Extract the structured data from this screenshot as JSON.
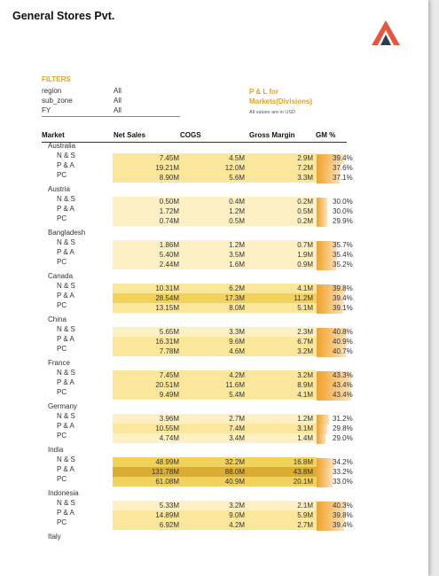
{
  "company": "General Stores Pvt.",
  "filters": {
    "title": "FILTERS",
    "rows": [
      {
        "label": "region",
        "value": "All"
      },
      {
        "label": "sub_zone",
        "value": "All"
      },
      {
        "label": "FY",
        "value": "All"
      }
    ]
  },
  "report": {
    "title_line1": "P & L for",
    "title_line2": "Markets(Divisions)",
    "note": "All values are in USD"
  },
  "headers": {
    "market": "Market",
    "net_sales": "Net Sales",
    "cogs": "COGS",
    "gross_margin": "Gross Margin",
    "gm_pct": "GM %"
  },
  "colors": {
    "accent": "#e8a21a",
    "band_light": "#fdf0c4",
    "band_mid": "#fae79c",
    "band_strong": "#f1d25c",
    "band_dark": "#d8ad32"
  },
  "markets": [
    {
      "name": "Australia",
      "rows": [
        {
          "division": "N & S",
          "net_sales": "7.45M",
          "cogs": "4.5M",
          "gross_margin": "2.9M",
          "gm_pct": "39.4%",
          "gm": 39.4
        },
        {
          "division": "P & A",
          "net_sales": "19.21M",
          "cogs": "12.0M",
          "gross_margin": "7.2M",
          "gm_pct": "37.6%",
          "gm": 37.6
        },
        {
          "division": "PC",
          "net_sales": "8.90M",
          "cogs": "5.6M",
          "gross_margin": "3.3M",
          "gm_pct": "37.1%",
          "gm": 37.1
        }
      ]
    },
    {
      "name": "Austria",
      "rows": [
        {
          "division": "N & S",
          "net_sales": "0.50M",
          "cogs": "0.4M",
          "gross_margin": "0.2M",
          "gm_pct": "30.0%",
          "gm": 30.0
        },
        {
          "division": "P & A",
          "net_sales": "1.72M",
          "cogs": "1.2M",
          "gross_margin": "0.5M",
          "gm_pct": "30.0%",
          "gm": 30.0
        },
        {
          "division": "PC",
          "net_sales": "0.74M",
          "cogs": "0.5M",
          "gross_margin": "0.2M",
          "gm_pct": "29.9%",
          "gm": 29.9
        }
      ]
    },
    {
      "name": "Bangladesh",
      "rows": [
        {
          "division": "N & S",
          "net_sales": "1.86M",
          "cogs": "1.2M",
          "gross_margin": "0.7M",
          "gm_pct": "35.7%",
          "gm": 35.7
        },
        {
          "division": "P & A",
          "net_sales": "5.40M",
          "cogs": "3.5M",
          "gross_margin": "1.9M",
          "gm_pct": "35.4%",
          "gm": 35.4
        },
        {
          "division": "PC",
          "net_sales": "2.44M",
          "cogs": "1.6M",
          "gross_margin": "0.9M",
          "gm_pct": "35.2%",
          "gm": 35.2
        }
      ]
    },
    {
      "name": "Canada",
      "rows": [
        {
          "division": "N & S",
          "net_sales": "10.31M",
          "cogs": "6.2M",
          "gross_margin": "4.1M",
          "gm_pct": "39.8%",
          "gm": 39.8
        },
        {
          "division": "P & A",
          "net_sales": "28.54M",
          "cogs": "17.3M",
          "gross_margin": "11.2M",
          "gm_pct": "39.4%",
          "gm": 39.4
        },
        {
          "division": "PC",
          "net_sales": "13.15M",
          "cogs": "8.0M",
          "gross_margin": "5.1M",
          "gm_pct": "39.1%",
          "gm": 39.1
        }
      ]
    },
    {
      "name": "China",
      "rows": [
        {
          "division": "N & S",
          "net_sales": "5.65M",
          "cogs": "3.3M",
          "gross_margin": "2.3M",
          "gm_pct": "40.8%",
          "gm": 40.8
        },
        {
          "division": "P & A",
          "net_sales": "16.31M",
          "cogs": "9.6M",
          "gross_margin": "6.7M",
          "gm_pct": "40.9%",
          "gm": 40.9
        },
        {
          "division": "PC",
          "net_sales": "7.78M",
          "cogs": "4.6M",
          "gross_margin": "3.2M",
          "gm_pct": "40.7%",
          "gm": 40.7
        }
      ]
    },
    {
      "name": "France",
      "rows": [
        {
          "division": "N & S",
          "net_sales": "7.45M",
          "cogs": "4.2M",
          "gross_margin": "3.2M",
          "gm_pct": "43.3%",
          "gm": 43.3
        },
        {
          "division": "P & A",
          "net_sales": "20.51M",
          "cogs": "11.6M",
          "gross_margin": "8.9M",
          "gm_pct": "43.4%",
          "gm": 43.4
        },
        {
          "division": "PC",
          "net_sales": "9.49M",
          "cogs": "5.4M",
          "gross_margin": "4.1M",
          "gm_pct": "43.4%",
          "gm": 43.4
        }
      ]
    },
    {
      "name": "Germany",
      "rows": [
        {
          "division": "N & S",
          "net_sales": "3.96M",
          "cogs": "2.7M",
          "gross_margin": "1.2M",
          "gm_pct": "31.2%",
          "gm": 31.2
        },
        {
          "division": "P & A",
          "net_sales": "10.55M",
          "cogs": "7.4M",
          "gross_margin": "3.1M",
          "gm_pct": "29.8%",
          "gm": 29.8
        },
        {
          "division": "PC",
          "net_sales": "4.74M",
          "cogs": "3.4M",
          "gross_margin": "1.4M",
          "gm_pct": "29.0%",
          "gm": 29.0
        }
      ]
    },
    {
      "name": "India",
      "rows": [
        {
          "division": "N & S",
          "net_sales": "48.99M",
          "cogs": "32.2M",
          "gross_margin": "16.8M",
          "gm_pct": "34.2%",
          "gm": 34.2
        },
        {
          "division": "P & A",
          "net_sales": "131.78M",
          "cogs": "88.0M",
          "gross_margin": "43.8M",
          "gm_pct": "33.2%",
          "gm": 33.2
        },
        {
          "division": "PC",
          "net_sales": "61.08M",
          "cogs": "40.9M",
          "gross_margin": "20.1M",
          "gm_pct": "33.0%",
          "gm": 33.0
        }
      ]
    },
    {
      "name": "Indonesia",
      "rows": [
        {
          "division": "N & S",
          "net_sales": "5.33M",
          "cogs": "3.2M",
          "gross_margin": "2.1M",
          "gm_pct": "40.3%",
          "gm": 40.3
        },
        {
          "division": "P & A",
          "net_sales": "14.89M",
          "cogs": "9.0M",
          "gross_margin": "5.9M",
          "gm_pct": "39.8%",
          "gm": 39.8
        },
        {
          "division": "PC",
          "net_sales": "6.92M",
          "cogs": "4.2M",
          "gross_margin": "2.7M",
          "gm_pct": "39.4%",
          "gm": 39.4
        }
      ]
    },
    {
      "name": "Italy",
      "rows": []
    }
  ]
}
